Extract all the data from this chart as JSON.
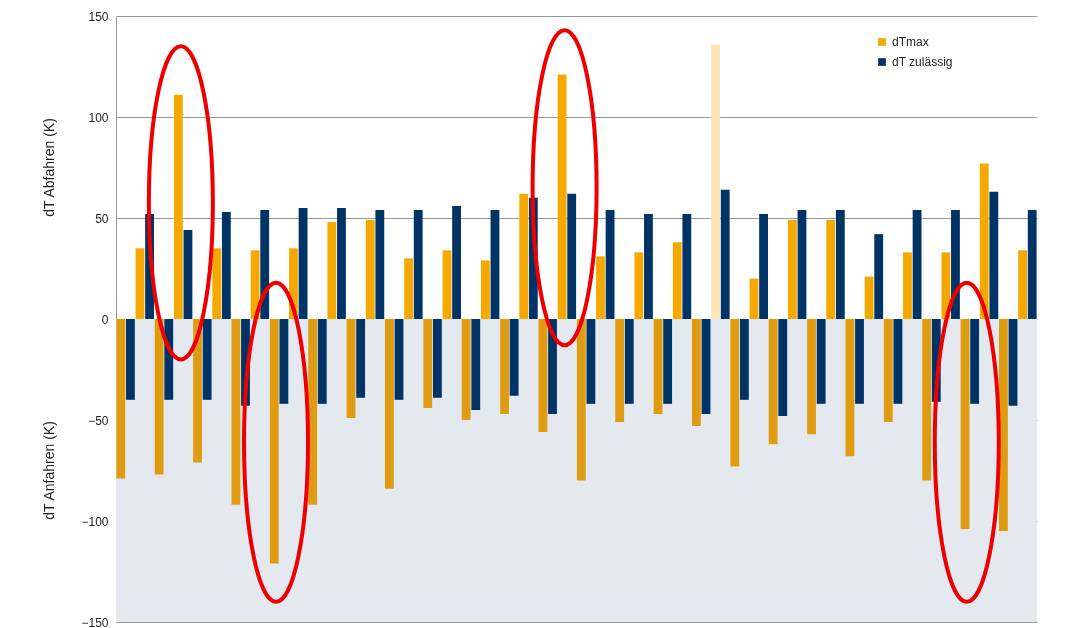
{
  "chart_data": {
    "type": "bar",
    "ylabel": "dT Abfahren (K)",
    "annotations": [
      "dT Anfahren (K)"
    ],
    "categories": [
      null,
      null,
      null,
      null,
      null,
      null,
      null,
      null,
      null,
      null,
      null,
      null,
      null,
      null,
      null,
      null,
      null,
      null,
      null,
      null,
      null,
      null,
      null,
      null
    ],
    "series": [
      {
        "color": "#e09c10",
        "values": [
          -79,
          -77,
          -71,
          -92,
          -121,
          -92,
          -49,
          -84,
          -44,
          -50,
          -47,
          -56,
          -80,
          -51,
          -47,
          -53,
          -73,
          -62,
          -57,
          -68,
          -51,
          -80,
          -104,
          -105
        ]
      },
      {
        "color": "#003366",
        "values": [
          -40,
          -40,
          -40,
          -43,
          -42,
          -42,
          -39,
          -40,
          -39,
          -45,
          -38,
          -47,
          -42,
          -42,
          -42,
          -47,
          -40,
          -48,
          -42,
          -42,
          -42,
          -41,
          -42,
          -43
        ]
      },
      {
        "name": "dTmax",
        "color": "#f5a800",
        "colors": [
          "#f5a800",
          "#f5a800",
          "#f5a800",
          "#f5a800",
          "#f5a800",
          "#f5a800",
          "#f5a800",
          "#f5a800",
          "#f5a800",
          "#f5a800",
          "#f5a800",
          "#f5a800",
          "#f5a800",
          "#f5a800",
          "#f5a800",
          "#fde6b5",
          "#f5a800",
          "#f5a800",
          "#f5a800",
          "#f5a800",
          "#f5a800",
          "#f5a800",
          "#f5a800",
          "#f5a800"
        ],
        "values": [
          35,
          111,
          35,
          34,
          35,
          48,
          49,
          30,
          34,
          29,
          62,
          121,
          31,
          33,
          38,
          136,
          20,
          49,
          49,
          21,
          33,
          33,
          77,
          34
        ]
      },
      {
        "name": "dT zulässig",
        "color": "#003366",
        "values": [
          52,
          44,
          53,
          54,
          55,
          55,
          54,
          54,
          56,
          54,
          60,
          62,
          54,
          52,
          52,
          64,
          52,
          54,
          54,
          42,
          54,
          54,
          63,
          54
        ]
      }
    ],
    "ylim": [
      -150,
      150
    ],
    "yticks": [
      -150,
      -100,
      -50,
      0,
      50,
      100,
      150
    ],
    "grid": "y",
    "legend": "top right",
    "tick_labels": "y",
    "bands": [
      {
        "axis": "y",
        "from": -150,
        "to": 0,
        "color": "#e4e9f0"
      }
    ]
  }
}
